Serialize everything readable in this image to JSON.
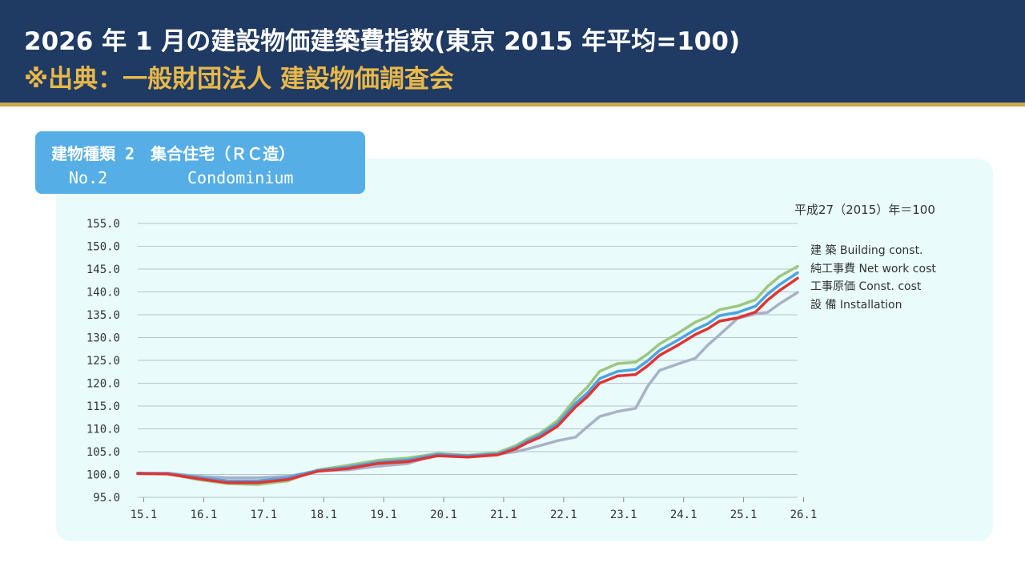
{
  "header": {
    "title": "2026 年 1 月の建設物価建築費指数(東京 2015 年平均=100)",
    "source": "※出典：一般財団法人 建設物価調査会",
    "bg_color": "#1f3a63",
    "accent_color": "#c9a84c",
    "source_color": "#e8b84a"
  },
  "panel": {
    "tag_line1": "建物種類 2　集合住宅（ＲＣ造）",
    "tag_no": "No.2",
    "tag_name": "Condominium",
    "tag_color": "#56aee6",
    "base_note": "平成27（2015）年＝100"
  },
  "legend": [
    {
      "label": "建 築  Building const."
    },
    {
      "label": "純工事費  Net work cost"
    },
    {
      "label": "工事原価  Const. cost"
    },
    {
      "label": "設 備  Installation"
    }
  ],
  "chart_data": {
    "type": "line",
    "title": "2026 年 1 月の建設物価建築費指数(東京 2015 年平均=100)",
    "xlabel": "",
    "ylabel": "",
    "x_ticks": [
      "15.1",
      "16.1",
      "17.1",
      "18.1",
      "19.1",
      "20.1",
      "21.1",
      "22.1",
      "23.1",
      "24.1",
      "25.1",
      "26.1"
    ],
    "x_range": [
      15.0,
      26.0
    ],
    "y_ticks": [
      "155.0",
      "150.0",
      "145.0",
      "140.0",
      "135.0",
      "130.0",
      "125.0",
      "120.0",
      "115.0",
      "110.0",
      "105.0",
      "100.0",
      "95.0"
    ],
    "ylim": [
      95.0,
      155.0
    ],
    "grid": true,
    "legend_position": "right",
    "series": [
      {
        "name": "建 築  Building const.",
        "color": "#4fa3e0",
        "x": [
          15.0,
          15.5,
          16.0,
          16.5,
          17.0,
          17.5,
          18.0,
          18.5,
          19.0,
          19.5,
          20.0,
          20.5,
          21.0,
          21.3,
          21.5,
          21.7,
          22.0,
          22.3,
          22.5,
          22.7,
          23.0,
          23.3,
          23.5,
          23.7,
          24.0,
          24.3,
          24.5,
          24.7,
          25.0,
          25.3,
          25.5,
          25.7,
          26.0
        ],
        "y": [
          100.3,
          100.2,
          99.4,
          98.6,
          98.6,
          99.3,
          100.9,
          101.6,
          102.7,
          103.2,
          104.4,
          104.1,
          104.5,
          105.9,
          107.4,
          108.6,
          111.2,
          115.6,
          117.9,
          121.0,
          122.6,
          123.0,
          124.9,
          127.2,
          129.4,
          131.8,
          133.0,
          134.8,
          135.5,
          136.9,
          139.5,
          141.6,
          144.2
        ]
      },
      {
        "name": "純工事費  Net work cost",
        "color": "#9cc77e",
        "x": [
          15.0,
          15.5,
          16.0,
          16.5,
          17.0,
          17.5,
          18.0,
          18.5,
          19.0,
          19.5,
          20.0,
          20.5,
          21.0,
          21.3,
          21.5,
          21.7,
          22.0,
          22.3,
          22.5,
          22.7,
          23.0,
          23.3,
          23.5,
          23.7,
          24.0,
          24.3,
          24.5,
          24.7,
          25.0,
          25.3,
          25.5,
          25.7,
          26.0
        ],
        "y": [
          100.2,
          100.2,
          98.9,
          98.0,
          97.8,
          98.6,
          101.0,
          102.0,
          103.1,
          103.6,
          104.6,
          104.2,
          104.8,
          106.3,
          107.8,
          109.0,
          111.8,
          116.6,
          119.2,
          122.6,
          124.3,
          124.6,
          126.4,
          128.6,
          130.9,
          133.4,
          134.5,
          136.1,
          136.9,
          138.3,
          141.2,
          143.4,
          145.6
        ]
      },
      {
        "name": "工事原価  Const. cost",
        "color": "#e03434",
        "x": [
          15.0,
          15.5,
          16.0,
          16.5,
          17.0,
          17.5,
          18.0,
          18.5,
          19.0,
          19.5,
          20.0,
          20.5,
          21.0,
          21.3,
          21.5,
          21.7,
          22.0,
          22.3,
          22.5,
          22.7,
          23.0,
          23.3,
          23.5,
          23.7,
          24.0,
          24.3,
          24.5,
          24.7,
          25.0,
          25.3,
          25.5,
          25.7,
          26.0
        ],
        "y": [
          100.2,
          100.1,
          99.1,
          98.2,
          98.2,
          98.9,
          100.7,
          101.3,
          102.4,
          102.8,
          104.1,
          103.8,
          104.3,
          105.6,
          107.0,
          108.1,
          110.6,
          114.8,
          117.1,
          120.0,
          121.6,
          121.9,
          123.8,
          126.1,
          128.3,
          130.7,
          131.9,
          133.6,
          134.3,
          135.6,
          138.2,
          140.3,
          143.0
        ]
      },
      {
        "name": "設 備  Installation",
        "color": "#a9b1c8",
        "x": [
          15.0,
          15.5,
          16.0,
          16.5,
          17.0,
          17.5,
          18.0,
          18.5,
          19.0,
          19.5,
          20.0,
          20.5,
          21.0,
          21.3,
          21.5,
          21.7,
          22.0,
          22.3,
          22.5,
          22.7,
          23.0,
          23.3,
          23.5,
          23.7,
          24.0,
          24.3,
          24.5,
          24.7,
          25.0,
          25.3,
          25.5,
          25.7,
          26.0
        ],
        "y": [
          100.2,
          100.3,
          99.6,
          99.3,
          99.3,
          99.6,
          100.8,
          101.0,
          101.8,
          102.4,
          104.4,
          104.0,
          104.4,
          105.0,
          105.6,
          106.3,
          107.4,
          108.2,
          110.5,
          112.7,
          113.8,
          114.5,
          119.3,
          122.8,
          124.2,
          125.5,
          128.3,
          130.6,
          134.2,
          135.2,
          135.5,
          137.4,
          139.9
        ]
      }
    ]
  }
}
